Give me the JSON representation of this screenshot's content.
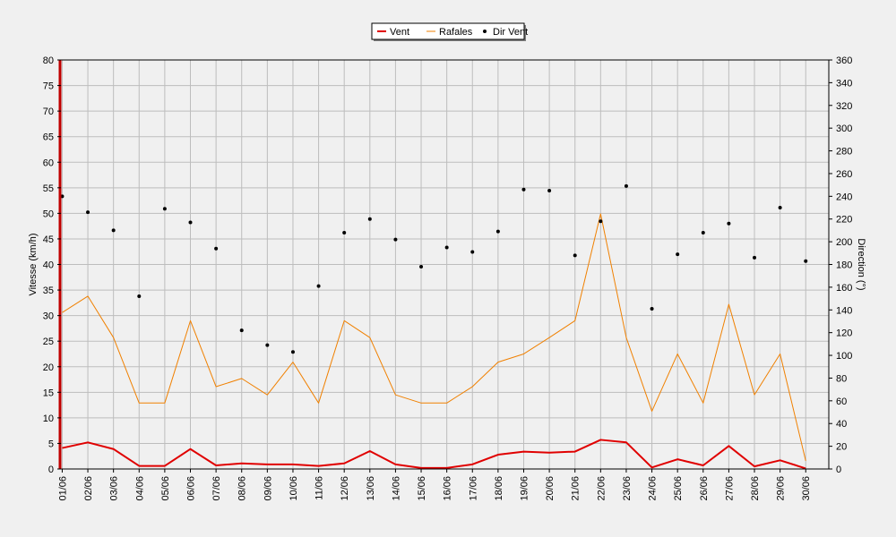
{
  "chart_data": {
    "type": "line",
    "categories": [
      "01/06",
      "02/06",
      "03/06",
      "04/06",
      "05/06",
      "06/06",
      "07/06",
      "08/06",
      "09/06",
      "10/06",
      "11/06",
      "12/06",
      "13/06",
      "14/06",
      "15/06",
      "16/06",
      "17/06",
      "18/06",
      "19/06",
      "20/06",
      "21/06",
      "22/06",
      "23/06",
      "24/06",
      "25/06",
      "26/06",
      "27/06",
      "28/06",
      "29/06",
      "30/06"
    ],
    "series": [
      {
        "name": "Vent",
        "axis": "left",
        "style": "line",
        "color": "#e00000",
        "values": [
          4.1,
          5.2,
          3.9,
          0.6,
          0.6,
          3.9,
          0.7,
          1.1,
          0.9,
          0.9,
          0.6,
          1.1,
          3.5,
          0.9,
          0.2,
          0.2,
          0.9,
          2.8,
          3.4,
          3.2,
          3.4,
          5.7,
          5.2,
          0.3,
          1.9,
          0.7,
          4.5,
          0.5,
          1.7,
          0.1
        ]
      },
      {
        "name": "Rafales",
        "axis": "left",
        "style": "line",
        "color": "#f08000",
        "values": [
          30.6,
          33.8,
          25.7,
          12.9,
          12.9,
          29.0,
          16.1,
          17.7,
          14.5,
          20.9,
          12.9,
          29.0,
          25.7,
          14.5,
          12.9,
          12.9,
          16.1,
          20.9,
          22.5,
          25.7,
          29.0,
          49.9,
          25.7,
          11.3,
          22.5,
          12.9,
          32.2,
          14.5,
          22.5,
          1.6
        ]
      },
      {
        "name": "Dir Vent",
        "axis": "right",
        "style": "points",
        "color": "#000000",
        "values": [
          240,
          226,
          210,
          152,
          229,
          217,
          194,
          122,
          109,
          103,
          161,
          208,
          220,
          202,
          178,
          195,
          191,
          209,
          246,
          245,
          188,
          218,
          249,
          141,
          189,
          208,
          216,
          186,
          230,
          183
        ]
      }
    ],
    "ylabel_left": "Vitesse (km/h)",
    "ylabel_right": "Direction (°)",
    "xlabel": "",
    "ylim_left": [
      0,
      80
    ],
    "ylim_right": [
      0,
      360
    ],
    "yticks_left": [
      0,
      5,
      10,
      15,
      20,
      25,
      30,
      35,
      40,
      45,
      50,
      55,
      60,
      65,
      70,
      75,
      80
    ],
    "yticks_right": [
      0,
      20,
      40,
      60,
      80,
      100,
      120,
      140,
      160,
      180,
      200,
      220,
      240,
      260,
      280,
      300,
      320,
      340,
      360
    ],
    "grid": true,
    "legend_position": "top-center"
  }
}
